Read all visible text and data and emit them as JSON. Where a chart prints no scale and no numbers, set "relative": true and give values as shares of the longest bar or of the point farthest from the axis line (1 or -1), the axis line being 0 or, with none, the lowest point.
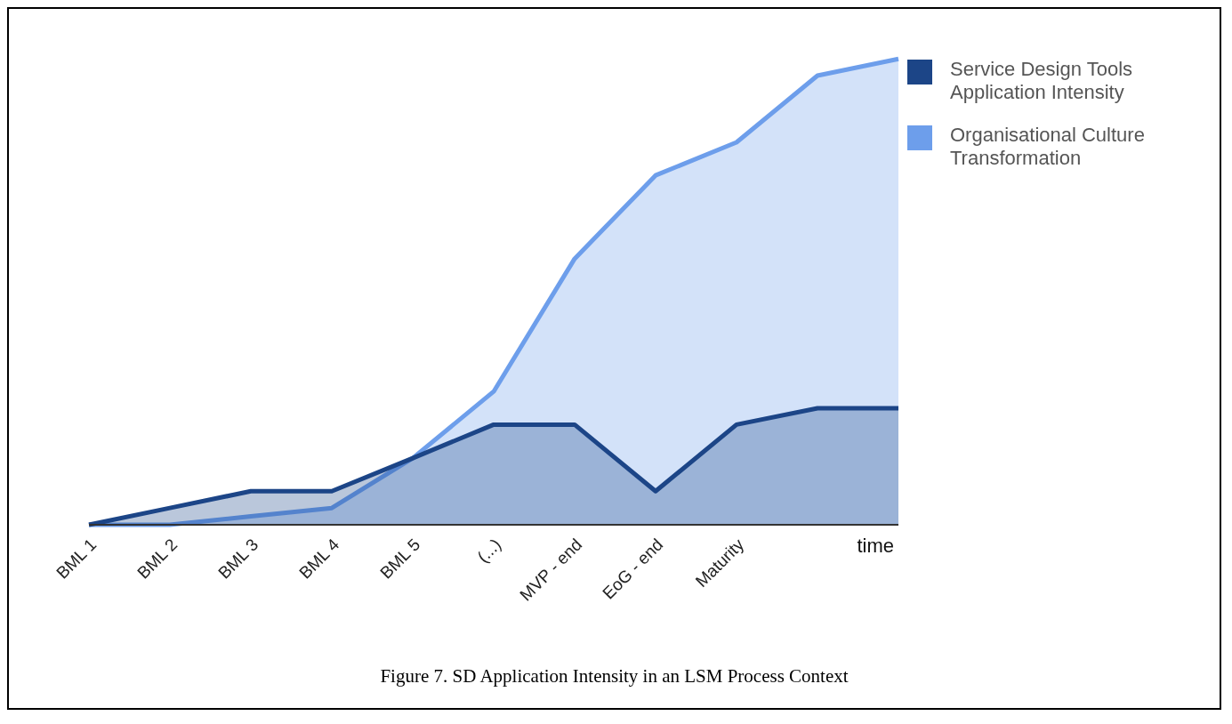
{
  "chart_data": {
    "type": "area",
    "relative": true,
    "xlabel": "time",
    "categories": [
      "BML 1",
      "BML 2",
      "BML 3",
      "BML 4",
      "BML 5",
      "(...)",
      "MVP - end",
      "EoG - end",
      "Maturity",
      null,
      null
    ],
    "series": [
      {
        "name": "Organisational Culture Transformation",
        "color": "#6d9eeb",
        "values": [
          0,
          0,
          0.018,
          0.036,
          0.143,
          0.286,
          0.571,
          0.75,
          0.821,
          0.964,
          1
        ]
      },
      {
        "name": "Service Design Tools Application Intensity",
        "color": "#1c4587",
        "values": [
          0,
          0.036,
          0.072,
          0.072,
          0.143,
          0.215,
          0.215,
          0.072,
          0.215,
          0.25,
          0.25
        ]
      }
    ],
    "legend": "top right",
    "annotations": [
      "Figure 7. SD Application Intensity in an LSM Process Context"
    ]
  }
}
